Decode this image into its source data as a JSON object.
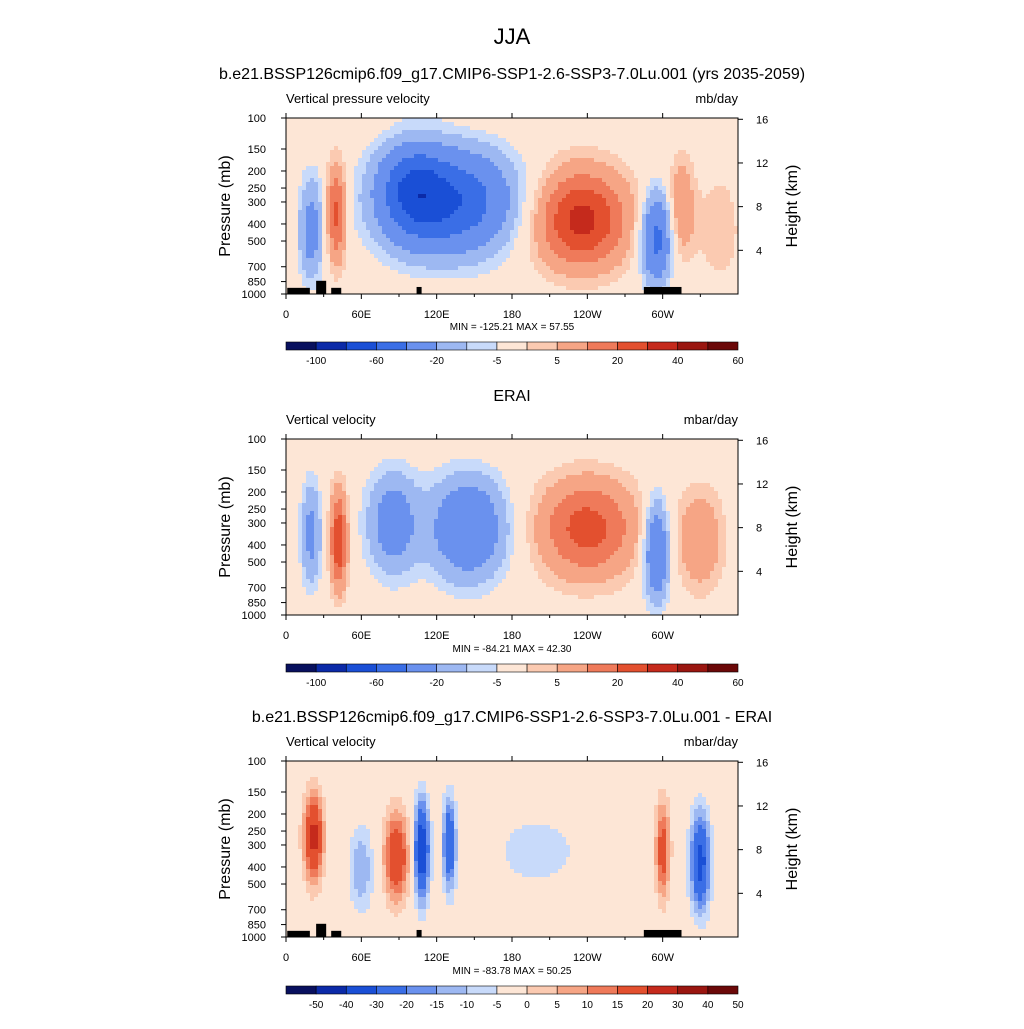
{
  "page_title": "JJA",
  "chart_data": [
    {
      "type": "heatmap",
      "title": "b.e21.BSSP126cmip6.f09_g17.CMIP6-SSP1-2.6-SSP3-7.0Lu.001 (yrs 2035-2059)",
      "left_label": "Vertical pressure velocity",
      "units": "mb/day",
      "ylabel": "Pressure (mb)",
      "ylabel_right": "Height (km)",
      "x_ticks": [
        "0",
        "60E",
        "120E",
        "180",
        "120W",
        "60W"
      ],
      "y_ticks": [
        "100",
        "150",
        "200",
        "250",
        "300",
        "400",
        "500",
        "700",
        "850",
        "1000"
      ],
      "right_ticks": [
        "16",
        "12",
        "8",
        "4"
      ],
      "ylim": [
        1000,
        100
      ],
      "stats": "MIN = -125.21  MAX =  57.55",
      "colorbar_labels": [
        "-100",
        "-60",
        "-20",
        "-5",
        "5",
        "20",
        "40",
        "60"
      ],
      "min": -125.21,
      "max": 57.55
    },
    {
      "type": "heatmap",
      "title": "ERAI",
      "left_label": "Vertical velocity",
      "units": "mbar/day",
      "ylabel": "Pressure (mb)",
      "ylabel_right": "Height (km)",
      "x_ticks": [
        "0",
        "60E",
        "120E",
        "180",
        "120W",
        "60W"
      ],
      "y_ticks": [
        "100",
        "150",
        "200",
        "250",
        "300",
        "400",
        "500",
        "700",
        "850",
        "1000"
      ],
      "right_ticks": [
        "16",
        "12",
        "8",
        "4"
      ],
      "ylim": [
        1000,
        100
      ],
      "stats": "MIN = -84.21  MAX =  42.30",
      "colorbar_labels": [
        "-100",
        "-60",
        "-20",
        "-5",
        "5",
        "20",
        "40",
        "60"
      ],
      "min": -84.21,
      "max": 42.3
    },
    {
      "type": "heatmap",
      "title": "b.e21.BSSP126cmip6.f09_g17.CMIP6-SSP1-2.6-SSP3-7.0Lu.001 - ERAI",
      "left_label": "Vertical velocity",
      "units": "mbar/day",
      "ylabel": "Pressure (mb)",
      "ylabel_right": "Height (km)",
      "x_ticks": [
        "0",
        "60E",
        "120E",
        "180",
        "120W",
        "60W"
      ],
      "y_ticks": [
        "100",
        "150",
        "200",
        "250",
        "300",
        "400",
        "500",
        "700",
        "850",
        "1000"
      ],
      "right_ticks": [
        "16",
        "12",
        "8",
        "4"
      ],
      "ylim": [
        1000,
        100
      ],
      "stats": "MIN = -83.78  MAX =  50.25",
      "colorbar_labels": [
        "-50",
        "-40",
        "-30",
        "-20",
        "-15",
        "-10",
        "-5",
        "0",
        "5",
        "10",
        "15",
        "20",
        "30",
        "40",
        "50"
      ],
      "min": -83.78,
      "max": 50.25
    }
  ],
  "colors": {
    "colorbar": [
      "#08105e",
      "#0b2aa8",
      "#1a4fd6",
      "#3a6ee6",
      "#6a91ee",
      "#9db8f2",
      "#c8dafa",
      "#fde6d6",
      "#fbcab1",
      "#f6a585",
      "#ef7a5a",
      "#e3502f",
      "#c52a1c",
      "#9a1610",
      "#6b0808"
    ]
  }
}
